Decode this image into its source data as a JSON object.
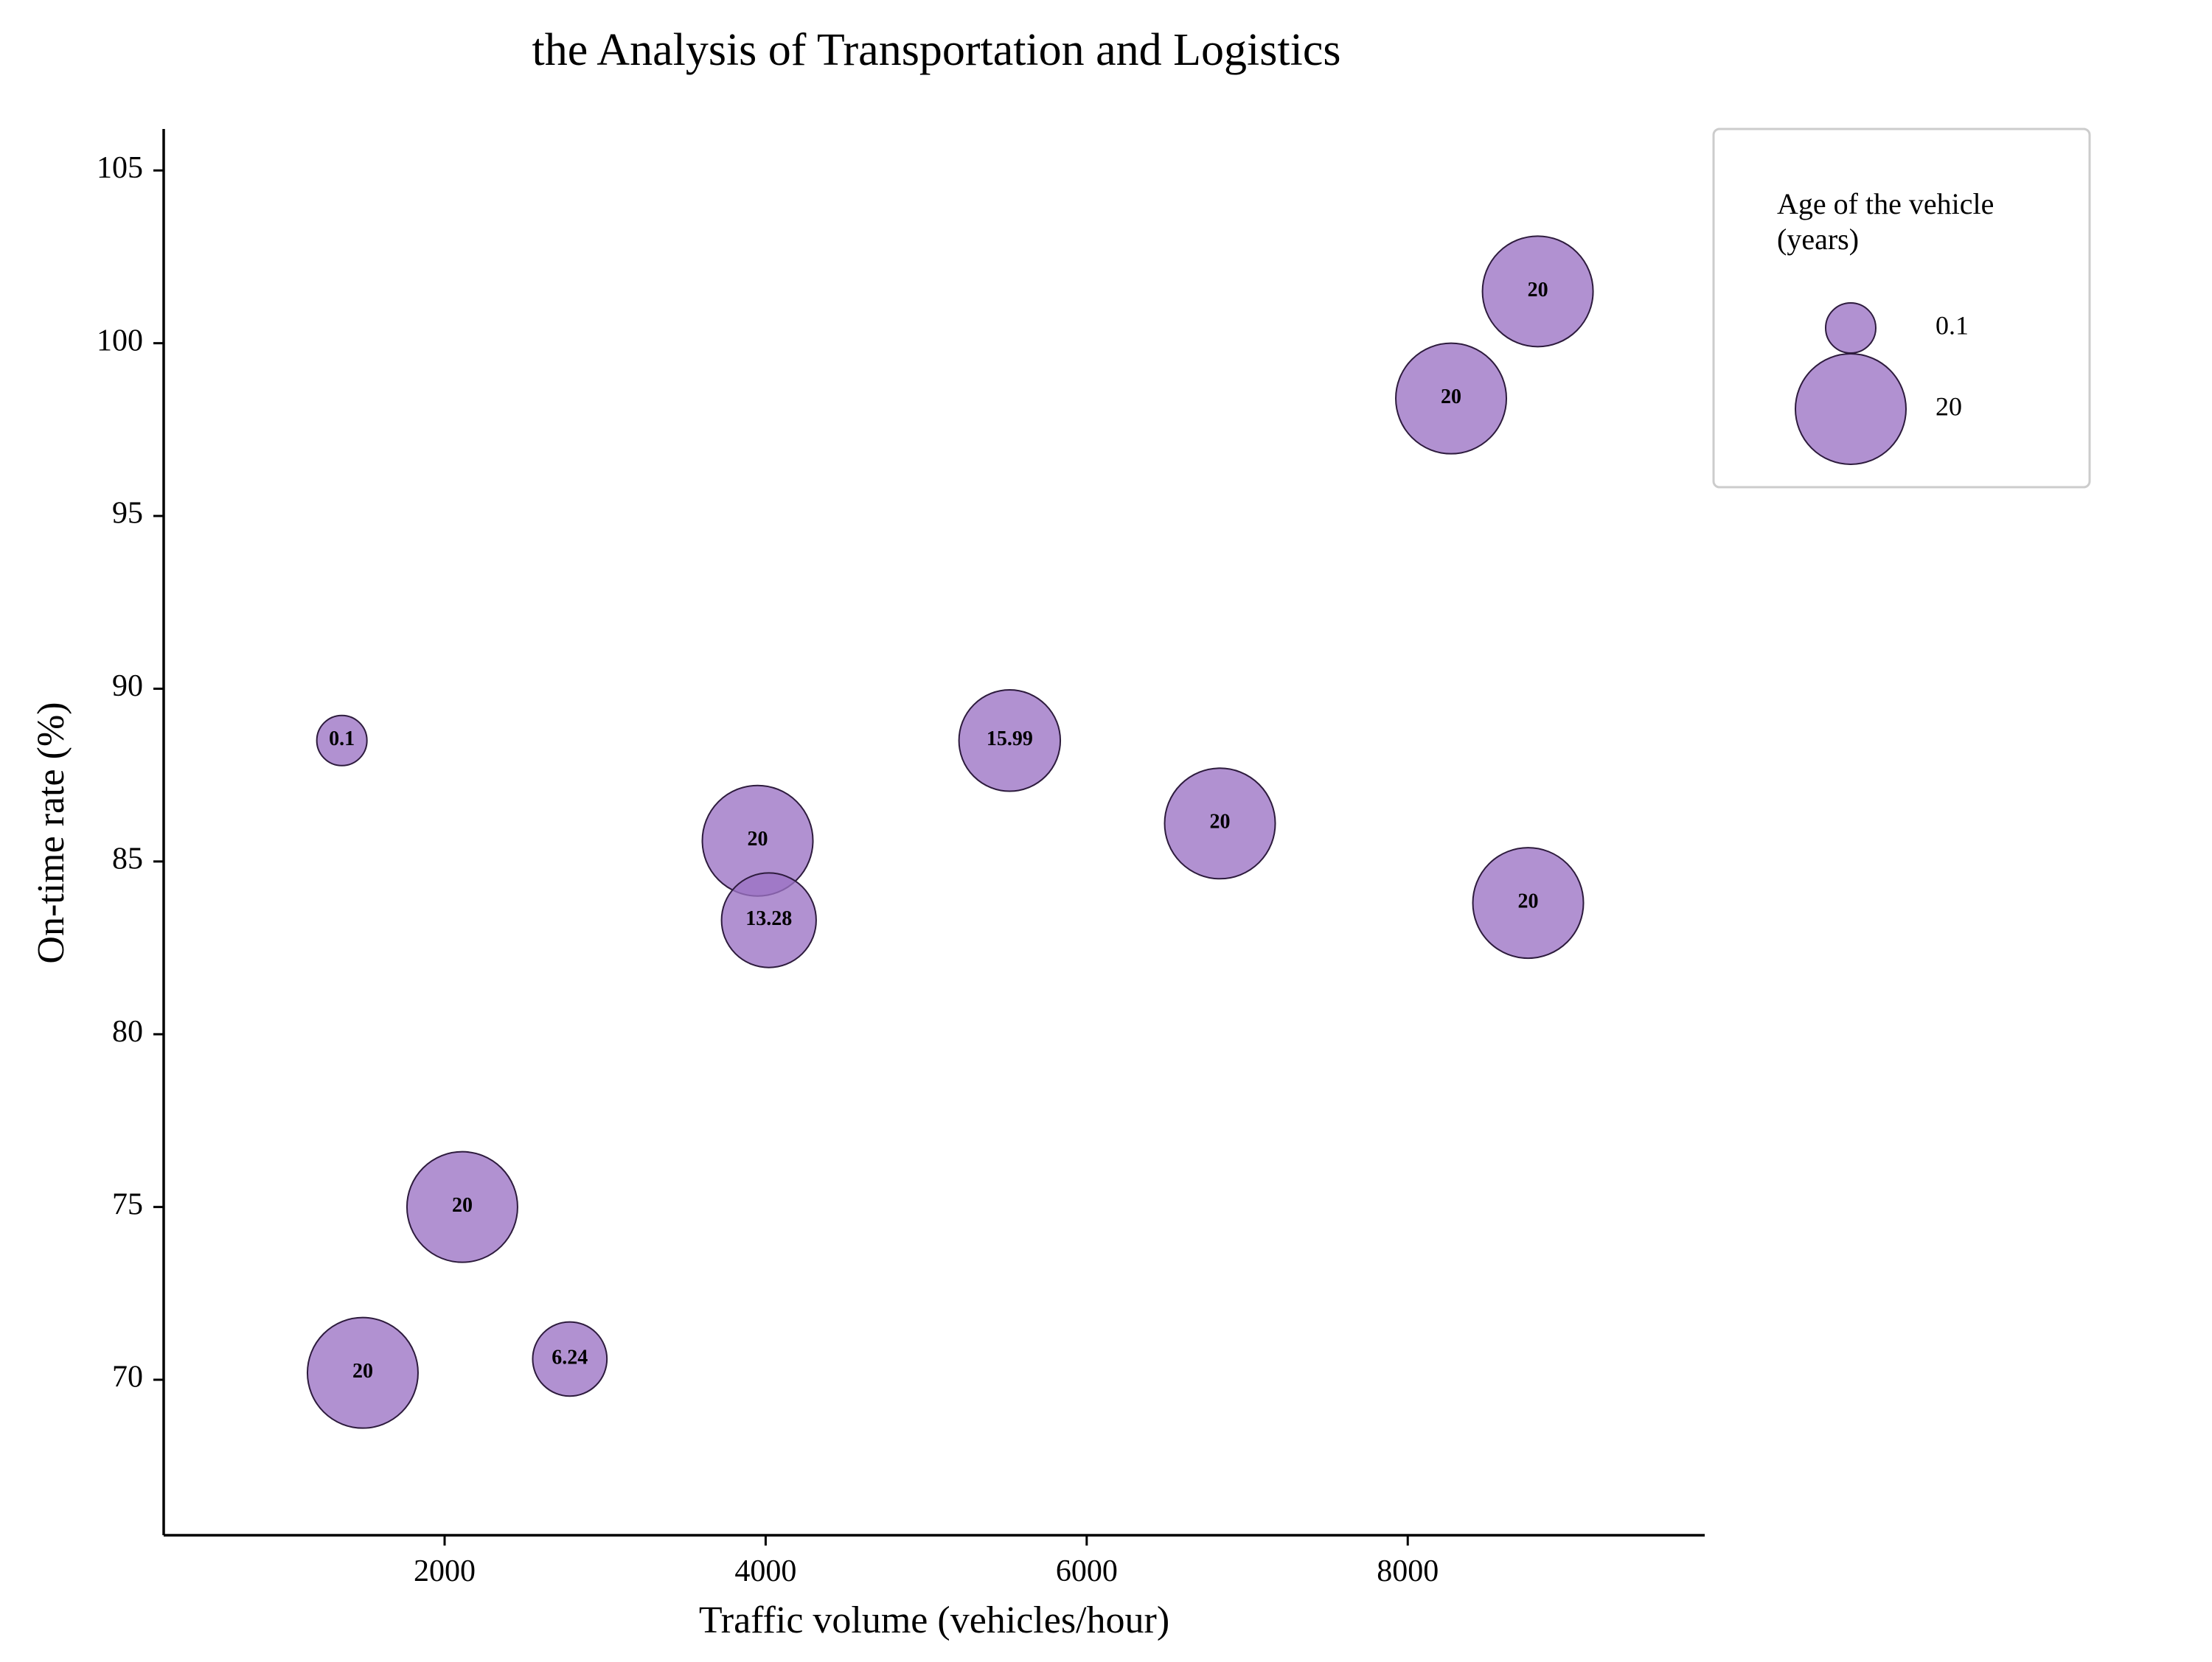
{
  "chart_data": {
    "type": "scatter",
    "title": "the Analysis of Transportation and Logistics",
    "xlabel": "Traffic volume (vehicles/hour)",
    "ylabel": "On-time rate (%)",
    "xlim": [
      250,
      9850
    ],
    "ylim": [
      65.5,
      106.2
    ],
    "xticks": [
      2000,
      4000,
      6000,
      8000
    ],
    "yticks": [
      70,
      75,
      80,
      85,
      90,
      95,
      100,
      105
    ],
    "grid": false,
    "legend": {
      "title": "Age of the vehicle\n(years)",
      "placement": "top-right, outside plot",
      "entries": [
        {
          "label": "0.1",
          "size": 0.1
        },
        {
          "label": "20",
          "size": 20
        }
      ]
    },
    "bubble_color": "#9b72c4",
    "bubble_edge_color": "#2d1b3d",
    "points": [
      {
        "x": 1360,
        "y": 88.5,
        "size": 0.1,
        "label": "0.1"
      },
      {
        "x": 1490,
        "y": 70.2,
        "size": 20,
        "label": "20"
      },
      {
        "x": 2110,
        "y": 75.0,
        "size": 20,
        "label": "20"
      },
      {
        "x": 2780,
        "y": 70.6,
        "size": 6.24,
        "label": "6.24"
      },
      {
        "x": 3950,
        "y": 85.6,
        "size": 20,
        "label": "20"
      },
      {
        "x": 4020,
        "y": 83.3,
        "size": 13.28,
        "label": "13.28"
      },
      {
        "x": 5520,
        "y": 88.5,
        "size": 15.99,
        "label": "15.99"
      },
      {
        "x": 6830,
        "y": 86.1,
        "size": 20,
        "label": "20"
      },
      {
        "x": 8270,
        "y": 98.4,
        "size": 20,
        "label": "20"
      },
      {
        "x": 8810,
        "y": 101.5,
        "size": 20,
        "label": "20"
      },
      {
        "x": 8750,
        "y": 83.8,
        "size": 20,
        "label": "20"
      }
    ]
  }
}
